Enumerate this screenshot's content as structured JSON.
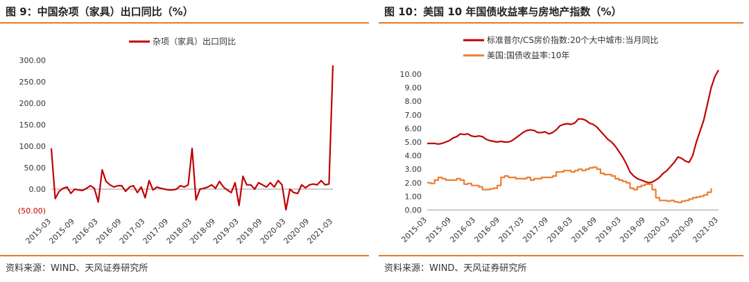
{
  "left": {
    "title": "图 9：中国杂项（家具）出口同比（%）",
    "source": "资料来源：WIND、天风证券研究所",
    "chart_data": {
      "type": "line",
      "legend_position": "top",
      "grid": false,
      "series": [
        {
          "name": "杂项（家具）出口同比",
          "color": "#c00000",
          "values": [
            95,
            -22,
            -5,
            2,
            5,
            -10,
            0,
            -2,
            -3,
            2,
            8,
            2,
            -30,
            45,
            18,
            10,
            5,
            8,
            8,
            -5,
            5,
            8,
            -8,
            5,
            -20,
            20,
            -2,
            5,
            2,
            0,
            -2,
            -2,
            0,
            8,
            5,
            10,
            95,
            -25,
            0,
            2,
            5,
            10,
            2,
            18,
            5,
            -2,
            -8,
            15,
            -38,
            30,
            10,
            10,
            0,
            15,
            10,
            5,
            15,
            5,
            20,
            10,
            -48,
            0,
            -8,
            -10,
            10,
            3,
            10,
            12,
            10,
            20,
            10,
            12,
            288
          ]
        }
      ],
      "x_tick_labels": [
        "2015-03",
        "2015-09",
        "2016-03",
        "2016-09",
        "2017-03",
        "2017-09",
        "2018-03",
        "2018-09",
        "2019-03",
        "2019-09",
        "2020-03",
        "2020-09",
        "2021-03"
      ],
      "y_ticks": [
        -50,
        0,
        50,
        100,
        150,
        200,
        250,
        300
      ],
      "y_tick_labels": [
        "(50.00)",
        "0.00",
        "50.00",
        "100.00",
        "150.00",
        "200.00",
        "250.00",
        "300.00"
      ],
      "negative_label_color": "#c00000",
      "ylim": [
        -50,
        300
      ]
    }
  },
  "right": {
    "title": "图 10：美国 10 年国债收益率与房地产指数（%）",
    "source": "资料来源：WIND、天风证券研究所",
    "chart_data": {
      "type": "line",
      "legend_position": "top-left",
      "grid": false,
      "series": [
        {
          "name": "标准普尔/CS房价指数:20个大中城市:当月同比",
          "color": "#c00000",
          "step": false,
          "values": [
            4.9,
            4.9,
            4.9,
            4.85,
            4.9,
            5.0,
            5.1,
            5.3,
            5.4,
            5.6,
            5.55,
            5.6,
            5.45,
            5.4,
            5.45,
            5.4,
            5.2,
            5.1,
            5.05,
            5.0,
            5.05,
            5.0,
            5.0,
            5.1,
            5.3,
            5.5,
            5.7,
            5.85,
            5.9,
            5.85,
            5.7,
            5.7,
            5.75,
            5.6,
            5.7,
            5.9,
            6.2,
            6.3,
            6.35,
            6.3,
            6.4,
            6.7,
            6.7,
            6.6,
            6.4,
            6.3,
            6.1,
            5.8,
            5.5,
            5.2,
            5.0,
            4.7,
            4.3,
            3.9,
            3.4,
            2.8,
            2.5,
            2.3,
            2.2,
            2.1,
            2.0,
            2.05,
            2.2,
            2.4,
            2.7,
            2.9,
            3.2,
            3.5,
            3.9,
            3.8,
            3.6,
            3.5,
            4.0,
            5.0,
            5.8,
            6.6,
            7.8,
            9.0,
            9.8,
            10.3
          ]
        },
        {
          "name": "美国:国债收益率:10年",
          "color": "#ed7d31",
          "step": true,
          "values": [
            2.0,
            1.95,
            2.2,
            2.4,
            2.3,
            2.2,
            2.2,
            2.2,
            2.3,
            2.2,
            1.9,
            1.95,
            1.8,
            1.8,
            1.7,
            1.5,
            1.5,
            1.55,
            1.6,
            1.8,
            2.4,
            2.5,
            2.4,
            2.4,
            2.3,
            2.3,
            2.3,
            2.4,
            2.2,
            2.3,
            2.3,
            2.4,
            2.4,
            2.4,
            2.5,
            2.8,
            2.8,
            2.9,
            2.9,
            2.8,
            2.9,
            3.0,
            2.9,
            3.0,
            3.1,
            3.15,
            3.0,
            2.7,
            2.6,
            2.6,
            2.5,
            2.3,
            2.2,
            2.1,
            2.0,
            1.6,
            1.5,
            1.7,
            1.8,
            1.9,
            1.9,
            1.5,
            0.9,
            0.7,
            0.7,
            0.65,
            0.7,
            0.6,
            0.55,
            0.65,
            0.7,
            0.8,
            0.9,
            0.95,
            1.0,
            1.1,
            1.3,
            1.6
          ]
        }
      ],
      "x_tick_labels": [
        "2015-03",
        "2015-09",
        "2016-03",
        "2016-09",
        "2017-03",
        "2017-09",
        "2018-03",
        "2018-09",
        "2019-03",
        "2019-09",
        "2020-03",
        "2020-09",
        "2021-03"
      ],
      "y_ticks": [
        0,
        1,
        2,
        3,
        4,
        5,
        6,
        7,
        8,
        9,
        10
      ],
      "y_tick_labels": [
        "0.00",
        "1.00",
        "2.00",
        "3.00",
        "4.00",
        "5.00",
        "6.00",
        "7.00",
        "8.00",
        "9.00",
        "10.00"
      ],
      "ylim": [
        0,
        10
      ]
    }
  }
}
